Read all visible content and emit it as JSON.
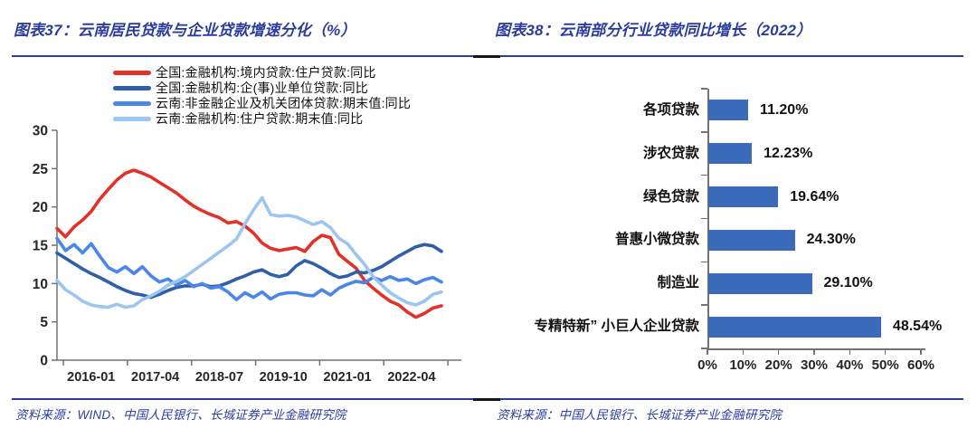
{
  "page": {
    "background": "#ffffff",
    "accent_navy": "#2C3C9E",
    "axis_gray": "#737373"
  },
  "figures": {
    "left": {
      "title": "图表37：云南居民贷款与企业贷款增速分化（%）",
      "source": "资料来源：WIND、中国人民银行、长城证券产业金融研究院"
    },
    "right": {
      "title": "图表38：云南部分行业贷款同比增长（2022）",
      "source": "资料来源：中国人民银行、长城证券产业金融研究院"
    }
  },
  "chart_data": [
    {
      "type": "line",
      "title": "云南居民贷款与企业贷款增速分化（%）",
      "xlabel": "",
      "ylabel": "",
      "ylim": [
        0,
        30
      ],
      "yticks": [
        0,
        5,
        10,
        15,
        20,
        25,
        30
      ],
      "grid": false,
      "legend_position": "top",
      "x_start_month": "2015-05",
      "x_step_months": 2,
      "x_total_months": 90,
      "xtick_labels": [
        "2016-01",
        "2017-04",
        "2018-07",
        "2019-10",
        "2021-01",
        "2022-04"
      ],
      "xtick_label_months": [
        8,
        23,
        38,
        53,
        68,
        83
      ],
      "series": [
        {
          "name": "全国:金融机构:境内贷款:住户贷款:同比",
          "color": "#E23227",
          "values": [
            17.2,
            16.1,
            17.4,
            18.3,
            19.4,
            21.0,
            22.3,
            23.5,
            24.4,
            24.8,
            24.4,
            23.9,
            23.2,
            22.5,
            21.8,
            20.9,
            20.1,
            19.5,
            19.0,
            18.6,
            17.9,
            18.1,
            17.5,
            16.6,
            15.3,
            14.6,
            14.3,
            14.5,
            14.7,
            14.2,
            15.5,
            16.3,
            16.0,
            13.8,
            12.9,
            12.0,
            10.4,
            9.4,
            8.5,
            7.7,
            7.2,
            6.3,
            5.6,
            6.1,
            6.8,
            7.1
          ]
        },
        {
          "name": "全国:金融机构:企(事)业单位贷款:同比",
          "color": "#2E5FA8",
          "values": [
            14.0,
            13.3,
            12.6,
            11.9,
            11.3,
            10.8,
            10.2,
            9.6,
            9.1,
            8.7,
            8.5,
            8.2,
            8.6,
            9.1,
            9.5,
            9.7,
            9.7,
            9.9,
            9.6,
            9.7,
            10.1,
            10.6,
            11.0,
            11.5,
            11.8,
            11.2,
            10.9,
            11.2,
            12.3,
            13.0,
            12.6,
            12.0,
            11.3,
            10.8,
            11.0,
            11.5,
            11.4,
            11.7,
            12.2,
            12.9,
            13.6,
            14.2,
            14.8,
            15.1,
            14.9,
            14.2
          ]
        },
        {
          "name": "云南:非金融企业及机关团体贷款:期末值:同比",
          "color": "#4A86E8",
          "values": [
            15.9,
            14.3,
            15.1,
            14.0,
            15.2,
            13.6,
            12.1,
            11.5,
            12.2,
            11.3,
            12.2,
            11.0,
            10.2,
            10.6,
            9.8,
            10.4,
            9.6,
            10.0,
            9.4,
            9.6,
            8.9,
            7.9,
            8.8,
            8.2,
            8.9,
            8.0,
            8.6,
            8.8,
            8.8,
            8.5,
            8.4,
            9.2,
            8.5,
            9.4,
            9.9,
            10.3,
            10.1,
            10.8,
            10.4,
            10.9,
            10.4,
            10.6,
            10.0,
            10.5,
            10.8,
            10.2
          ]
        },
        {
          "name": "云南:金融机构:住户贷款:期末值:同比",
          "color": "#9CC5F0",
          "values": [
            10.4,
            9.2,
            8.5,
            7.7,
            7.2,
            7.0,
            6.9,
            7.3,
            6.9,
            7.1,
            7.9,
            8.4,
            9.0,
            9.8,
            10.3,
            10.9,
            11.7,
            12.5,
            13.3,
            14.1,
            14.9,
            15.8,
            17.8,
            19.6,
            21.2,
            19.0,
            18.8,
            18.9,
            18.7,
            18.2,
            17.7,
            18.1,
            17.3,
            15.9,
            15.2,
            13.8,
            12.5,
            10.9,
            9.8,
            8.8,
            8.1,
            7.5,
            7.2,
            7.7,
            8.6,
            8.9
          ]
        }
      ]
    },
    {
      "type": "bar",
      "orientation": "horizontal",
      "title": "云南部分行业贷款同比增长（2022）",
      "bar_color": "#3A6BBA",
      "categories": [
        "各项贷款",
        "涉农贷款",
        "绿色贷款",
        "普惠小微贷款",
        "制造业",
        "专精特新” 小巨人企业贷款"
      ],
      "values": [
        11.2,
        12.23,
        19.64,
        24.3,
        29.1,
        48.54
      ],
      "value_labels": [
        "11.20%",
        "12.23%",
        "19.64%",
        "24.30%",
        "29.10%",
        "48.54%"
      ],
      "xlim": [
        0,
        60
      ],
      "xtick_labels": [
        "0%",
        "10%",
        "20%",
        "30%",
        "40%",
        "50%",
        "60%"
      ],
      "grid": false
    }
  ]
}
